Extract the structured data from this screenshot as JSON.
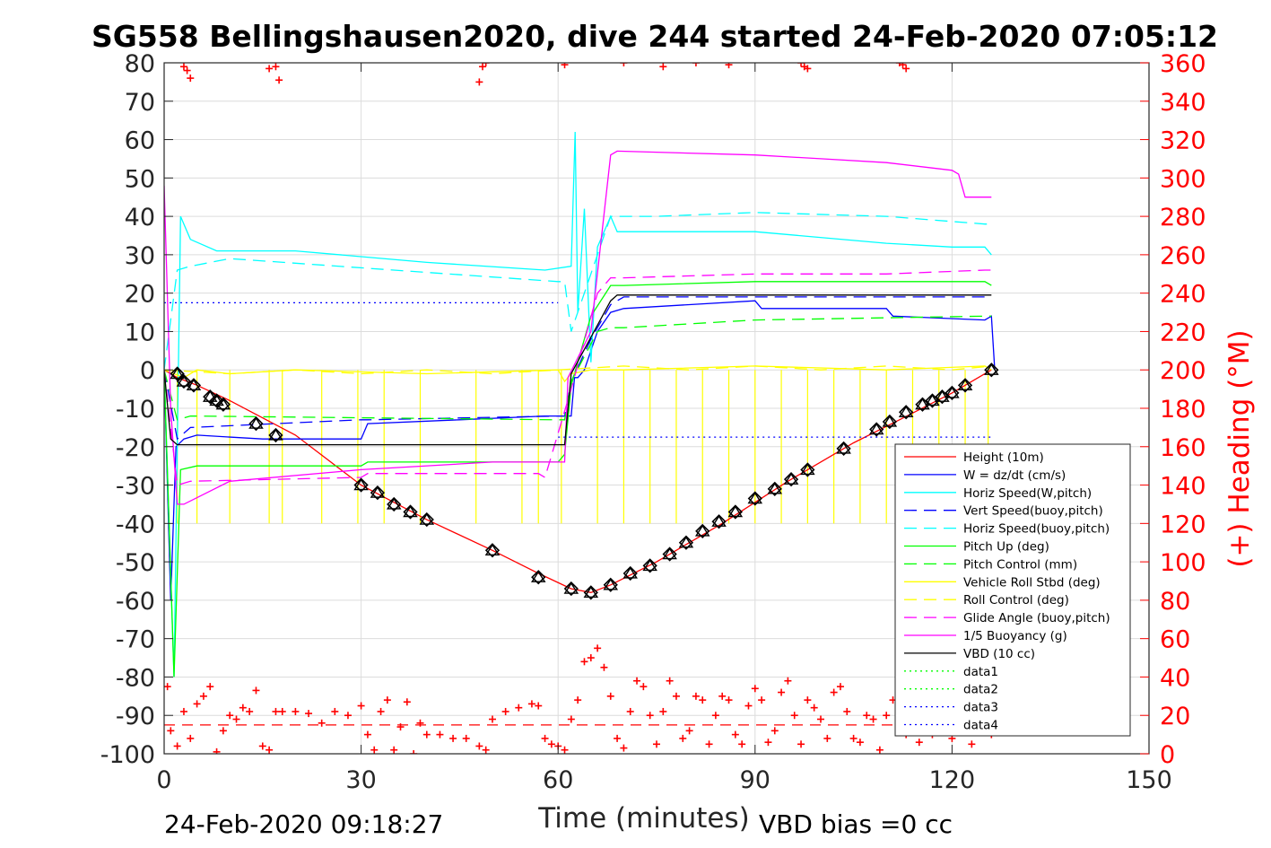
{
  "chart_data": {
    "type": "line",
    "title": "SG558 Bellingshausen2020, dive 244 started 24-Feb-2020 07:05:12",
    "xlabel": "Time (minutes)",
    "ylabel": "",
    "ylabel_right": "(+) Heading (°M)",
    "footer_left": "24-Feb-2020 09:18:27",
    "footer_right": "VBD bias =0 cc",
    "xlim": [
      0,
      150
    ],
    "ylim": [
      -100,
      80
    ],
    "ylim_right": [
      0,
      360
    ],
    "x_ticks": [
      "0",
      "30",
      "60",
      "90",
      "120",
      "150"
    ],
    "y_ticks": [
      "80",
      "70",
      "60",
      "50",
      "40",
      "30",
      "20",
      "10",
      "0",
      "-10",
      "-20",
      "-30",
      "-40",
      "-50",
      "-60",
      "-70",
      "-80",
      "-90",
      "-100"
    ],
    "y_ticks_right": [
      "360",
      "340",
      "320",
      "300",
      "280",
      "260",
      "240",
      "220",
      "200",
      "180",
      "160",
      "140",
      "120",
      "100",
      "80",
      "60",
      "40",
      "20",
      "0"
    ],
    "grid": true,
    "legend_position": "bottom-right",
    "legend": [
      {
        "name": "Height (10m)",
        "color": "#ff0000",
        "style": "solid"
      },
      {
        "name": "W = dz/dt (cm/s)",
        "color": "#0000ff",
        "style": "solid"
      },
      {
        "name": "Horiz Speed(W,pitch)",
        "color": "#00ffff",
        "style": "solid"
      },
      {
        "name": "Vert Speed(buoy,pitch)",
        "color": "#0000ff",
        "style": "dashed"
      },
      {
        "name": "Horiz Speed(buoy,pitch)",
        "color": "#00ffff",
        "style": "dashed"
      },
      {
        "name": "Pitch Up (deg)",
        "color": "#00ff00",
        "style": "solid"
      },
      {
        "name": "Pitch Control (mm)",
        "color": "#00ff00",
        "style": "dashed"
      },
      {
        "name": "Vehicle Roll Stbd (deg)",
        "color": "#ffff00",
        "style": "solid"
      },
      {
        "name": "Roll Control (deg)",
        "color": "#ffff00",
        "style": "dashed"
      },
      {
        "name": "Glide Angle (buoy,pitch)",
        "color": "#ff00ff",
        "style": "dashed"
      },
      {
        "name": "1/5 Buoyancy (g)",
        "color": "#ff00ff",
        "style": "solid"
      },
      {
        "name": "VBD (10 cc)",
        "color": "#000000",
        "style": "solid"
      },
      {
        "name": "data1",
        "color": "#00ff00",
        "style": "dotted"
      },
      {
        "name": "data2",
        "color": "#00ff00",
        "style": "dotted"
      },
      {
        "name": "data3",
        "color": "#0000ff",
        "style": "dotted"
      },
      {
        "name": "data4",
        "color": "#0000ff",
        "style": "dotted"
      }
    ],
    "series": [
      {
        "name": "Height (10m)",
        "color": "#ff0000",
        "dash": "",
        "x": [
          0,
          2,
          5,
          10,
          20,
          30,
          40,
          50,
          57,
          62,
          65,
          68,
          75,
          85,
          95,
          105,
          112,
          120,
          126
        ],
        "y": [
          0,
          -2,
          -4,
          -8,
          -17,
          -30,
          -39,
          -47,
          -53,
          -57,
          -58,
          -56,
          -50,
          -40,
          -29,
          -19,
          -13,
          -6,
          0
        ]
      },
      {
        "name": "W = dz/dt (cm/s)",
        "color": "#0000ff",
        "dash": "",
        "x": [
          0,
          1,
          1.8,
          3,
          5,
          15,
          30,
          31,
          45,
          58,
          60,
          62,
          62.5,
          63,
          64,
          66,
          68,
          70,
          80,
          90,
          91,
          110,
          111,
          125,
          126,
          126.5
        ],
        "y": [
          0,
          -60,
          -20,
          -18,
          -17,
          -18,
          -18,
          -14,
          -13,
          -12,
          -12,
          -12,
          -2,
          -2,
          0,
          10,
          15,
          16,
          17,
          18,
          16,
          16,
          14,
          13,
          14,
          0
        ]
      },
      {
        "name": "Horiz Speed(W,pitch)",
        "color": "#00ffff",
        "dash": "",
        "x": [
          0,
          1.5,
          2.5,
          4,
          8,
          20,
          40,
          58,
          62,
          62.6,
          63,
          64,
          65,
          66,
          68,
          69,
          75,
          90,
          110,
          120,
          125,
          126
        ],
        "y": [
          0,
          -80,
          40,
          34,
          31,
          31,
          28,
          26,
          27,
          62,
          15,
          42,
          2,
          32,
          40,
          36,
          36,
          36,
          33,
          32,
          32,
          30
        ]
      },
      {
        "name": "Vert Speed(buoy,pitch)",
        "color": "#0000ff",
        "dash": "14,8",
        "x": [
          0,
          2,
          4,
          30,
          31,
          60,
          61,
          62,
          65,
          68,
          70,
          90,
          125,
          126
        ],
        "y": [
          0,
          -18,
          -15,
          -13,
          -13,
          -12,
          -12,
          -3,
          8,
          17,
          19,
          19,
          19,
          19
        ]
      },
      {
        "name": "Horiz Speed(buoy,pitch)",
        "color": "#00ffff",
        "dash": "14,8",
        "x": [
          0,
          2,
          4,
          10,
          60,
          61,
          62,
          66,
          68,
          75,
          90,
          110,
          125,
          126
        ],
        "y": [
          0,
          26,
          27,
          29,
          23,
          23,
          10,
          30,
          40,
          40,
          41,
          40,
          38,
          38
        ]
      },
      {
        "name": "Pitch Up (deg)",
        "color": "#00ff00",
        "dash": "",
        "x": [
          0,
          1.5,
          2.5,
          5,
          30,
          31,
          60,
          61,
          62,
          65,
          68,
          70,
          90,
          125,
          126
        ],
        "y": [
          0,
          -80,
          -26,
          -25,
          -25,
          -24,
          -24,
          -22,
          -4,
          14,
          22,
          22,
          23,
          23,
          22
        ]
      },
      {
        "name": "Pitch Control (mm)",
        "color": "#00ff00",
        "dash": "14,8",
        "x": [
          0,
          2,
          4,
          60,
          61,
          62,
          66,
          68,
          70,
          90,
          125,
          126
        ],
        "y": [
          0,
          -13,
          -12,
          -13,
          -13,
          -3,
          10,
          11,
          11,
          13,
          14,
          14
        ]
      },
      {
        "name": "Vehicle Roll Stbd (deg)",
        "color": "#ffff00",
        "dash": "",
        "x": [
          0,
          3,
          5,
          10,
          20,
          40,
          60,
          61,
          62,
          65,
          70,
          90,
          110,
          125,
          126
        ],
        "y": [
          0,
          -2,
          0,
          -1,
          0,
          -1,
          0,
          -3,
          -1,
          0,
          0,
          1,
          0,
          1,
          0
        ]
      },
      {
        "name": "Roll Control (deg)",
        "color": "#ffff00",
        "dash": "14,8",
        "x": [
          0,
          10,
          20,
          30,
          40,
          50,
          60,
          70,
          80,
          90,
          100,
          110,
          120,
          126
        ],
        "y": [
          0,
          -1,
          0,
          -1,
          0,
          -1,
          0,
          1,
          0,
          1,
          0,
          1,
          0,
          1
        ]
      },
      {
        "name": "Glide Angle (buoy,pitch)",
        "color": "#ff00ff",
        "dash": "14,8",
        "x": [
          0,
          2,
          4,
          30,
          31,
          57,
          58,
          62,
          66,
          68,
          70,
          90,
          110,
          125,
          126
        ],
        "y": [
          0,
          -30,
          -29,
          -28,
          -27,
          -27,
          -28,
          -5,
          20,
          24,
          24,
          25,
          25,
          26,
          26
        ]
      },
      {
        "name": "1/5 Buoyancy (g)",
        "color": "#ff00ff",
        "dash": "",
        "x": [
          0,
          1,
          2,
          3,
          10,
          30,
          50,
          61,
          61.5,
          65,
          68,
          69,
          90,
          100,
          110,
          120,
          121,
          122,
          126
        ],
        "y": [
          48,
          -10,
          -35,
          -35,
          -29,
          -26,
          -24,
          -24,
          -2,
          10,
          56,
          57,
          56,
          55,
          54,
          52,
          51,
          45,
          45
        ]
      },
      {
        "name": "VBD (10 cc)",
        "color": "#000000",
        "dash": "",
        "x": [
          0,
          1,
          2,
          60,
          61,
          62,
          68,
          69,
          126
        ],
        "y": [
          0,
          -18,
          -19.5,
          -19.5,
          -19.5,
          -1,
          18,
          19.5,
          19.5
        ]
      },
      {
        "name": "data3",
        "color": "#0000ff",
        "dash": "2,4",
        "x": [
          0,
          60
        ],
        "y": [
          17.5,
          17.5
        ]
      },
      {
        "name": "data4",
        "color": "#0000ff",
        "dash": "2,4",
        "x": [
          60,
          126
        ],
        "y": [
          -17.5,
          -17.5
        ]
      },
      {
        "name": "data1",
        "color": "#ff0000",
        "dash": "12,8",
        "x": [
          0,
          126
        ],
        "y": [
          -92.5,
          -92.5
        ]
      }
    ],
    "markers": {
      "name": "Height (10m)",
      "x": [
        2,
        3,
        4.5,
        7,
        8,
        9,
        14,
        17,
        30,
        32.5,
        35,
        37.5,
        40,
        50,
        57,
        62,
        65,
        68,
        71,
        74,
        77,
        79.5,
        82,
        84.5,
        87,
        90,
        93,
        95.5,
        98,
        103.5,
        108.5,
        110.5,
        113,
        115.5,
        117,
        118.5,
        120,
        122,
        126
      ],
      "y": [
        -1,
        -3,
        -4,
        -7,
        -8,
        -9,
        -14,
        -17,
        -30,
        -32,
        -35,
        -37,
        -39,
        -47,
        -54,
        -57,
        -58,
        -56,
        -53,
        -51,
        -48,
        -45,
        -42,
        -39.5,
        -37,
        -33.5,
        -31,
        -28.5,
        -26,
        -20.5,
        -15.5,
        -13.5,
        -11,
        -9,
        -8,
        -7,
        -6,
        -4,
        0
      ]
    },
    "heading": {
      "name": "(+) Heading (°M)",
      "color": "#ff0000",
      "marker": "+",
      "x": [
        0.5,
        1,
        2,
        3,
        4,
        5,
        6,
        7,
        8,
        9,
        10,
        11,
        12,
        13,
        14,
        15,
        16,
        17,
        18,
        20,
        22,
        24,
        26,
        28,
        30,
        31,
        32,
        33,
        34,
        35,
        36,
        37,
        38,
        39,
        40,
        42,
        44,
        46,
        48,
        49,
        50,
        52,
        54,
        56,
        57,
        58,
        59,
        60,
        61,
        62,
        63,
        64,
        65,
        66,
        67,
        68,
        69,
        70,
        71,
        72,
        73,
        74,
        75,
        76,
        77,
        78,
        79,
        80,
        81,
        82,
        83,
        84,
        85,
        86,
        87,
        88,
        89,
        90,
        91,
        92,
        93,
        94,
        95,
        96,
        97,
        98,
        99,
        100,
        101,
        102,
        103,
        104,
        105,
        106,
        107,
        108,
        109,
        110,
        111,
        112,
        113,
        114,
        115,
        116,
        117,
        118,
        119,
        120,
        121,
        122,
        123,
        124,
        125,
        126
      ],
      "y": [
        35,
        12,
        4,
        22,
        8,
        26,
        30,
        35,
        1,
        12,
        20,
        18,
        24,
        22,
        33,
        4,
        2,
        22,
        22,
        22,
        21,
        16,
        22,
        20,
        25,
        10,
        2,
        22,
        28,
        2,
        14,
        27,
        0,
        16,
        10,
        10,
        8,
        8,
        4,
        2,
        18,
        22,
        24,
        26,
        25,
        8,
        5,
        4,
        2,
        18,
        28,
        48,
        50,
        55,
        45,
        30,
        8,
        3,
        22,
        38,
        35,
        20,
        5,
        22,
        38,
        30,
        8,
        12,
        30,
        28,
        5,
        20,
        30,
        28,
        10,
        5,
        25,
        34,
        28,
        6,
        12,
        32,
        38,
        20,
        5,
        28,
        24,
        18,
        8,
        32,
        35,
        22,
        8,
        6,
        20,
        18,
        2,
        20,
        28,
        18,
        10,
        22,
        6,
        24,
        10,
        24,
        15,
        8,
        22,
        30,
        5,
        12,
        24,
        10
      ],
      "y_top": [
        358,
        356,
        352,
        357,
        358,
        351,
        350,
        358,
        360,
        359,
        360,
        358,
        360,
        359,
        360,
        358,
        357,
        360,
        359,
        357
      ],
      "x_top": [
        3,
        3.5,
        4,
        16,
        17,
        17.5,
        48,
        48.5,
        49,
        61,
        70,
        76,
        81,
        86,
        97,
        97.5,
        98,
        112,
        112.5,
        113
      ]
    },
    "roll_spikes": [
      2,
      5,
      10,
      16,
      18,
      24,
      29.5,
      33.5,
      39,
      47.5,
      54.5,
      57,
      60.5,
      66,
      70,
      74,
      78,
      82,
      86,
      90,
      94,
      98,
      102,
      106,
      110,
      114,
      118,
      122,
      125.5
    ]
  }
}
